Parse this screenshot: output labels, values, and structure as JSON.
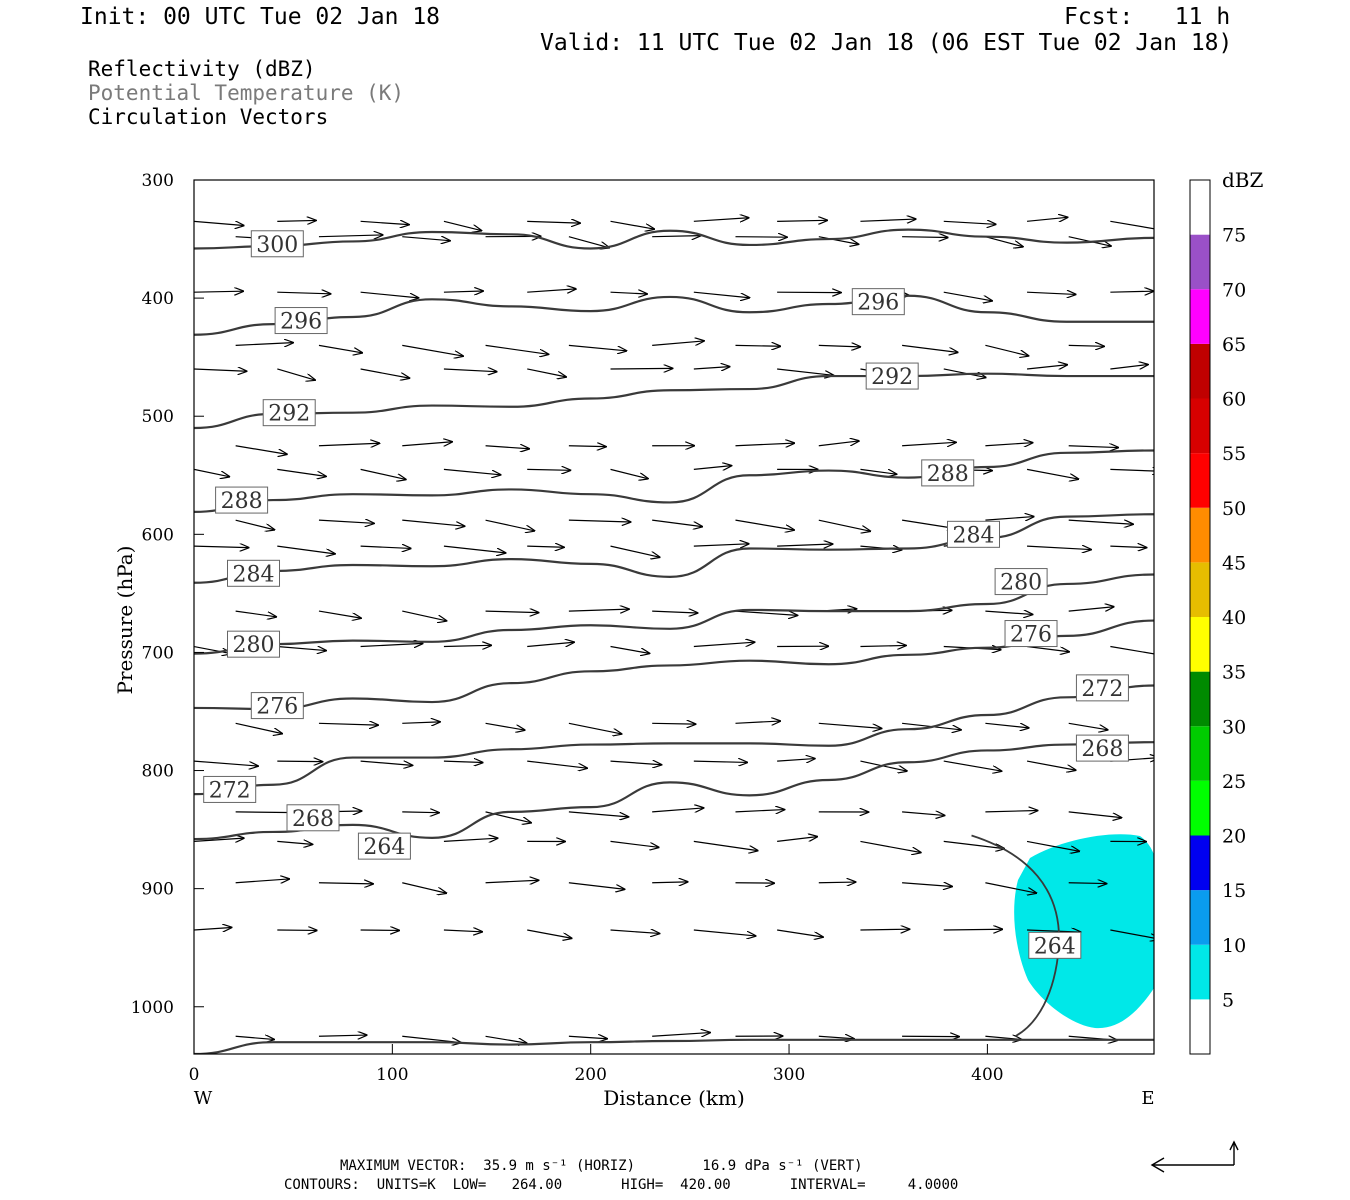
{
  "header": {
    "init": "Init: 00 UTC Tue 02 Jan 18",
    "fcst": "Fcst:   11 h",
    "valid": "Valid: 11 UTC Tue 02 Jan 18 (06 EST Tue 02 Jan 18)"
  },
  "fields": {
    "reflectivity": "Reflectivity (dBZ)",
    "theta": "Potential Temperature (K)",
    "vectors": "Circulation Vectors"
  },
  "footer": {
    "max_vector": "MAXIMUM VECTOR:  35.9 m s⁻¹ (HORIZ)        16.9 dPa s⁻¹ (VERT)",
    "contours": "CONTOURS:  UNITS=K  LOW=   264.00       HIGH=  420.00       INTERVAL=     4.0000"
  },
  "colorbar": {
    "unit_label": "dBZ",
    "levels": [
      5,
      10,
      15,
      20,
      25,
      30,
      35,
      40,
      45,
      50,
      55,
      60,
      65,
      70,
      75
    ],
    "colors": [
      "#ffffff",
      "#00e8e8",
      "#0a9cee",
      "#0000f0",
      "#00ff00",
      "#00cc00",
      "#008a00",
      "#ffff00",
      "#e6bd00",
      "#ff8c00",
      "#ff0000",
      "#d70000",
      "#c00000",
      "#ff00ff",
      "#9a50c8",
      "#ffffff"
    ]
  },
  "chart_data": {
    "type": "contour",
    "xlabel": "Distance (km)",
    "ylabel": "Pressure (hPa)",
    "xlim": [
      0,
      484
    ],
    "ylim": [
      1040,
      300
    ],
    "xticks": [
      0,
      100,
      200,
      300,
      400
    ],
    "yticks": [
      300,
      400,
      500,
      600,
      700,
      800,
      900,
      1000
    ],
    "x_end_labels": {
      "left": "W",
      "right": "E"
    },
    "contour_interval": 4,
    "contours": [
      {
        "level": 300,
        "points": [
          [
            0,
            358
          ],
          [
            40,
            356
          ],
          [
            80,
            352
          ],
          [
            120,
            344
          ],
          [
            160,
            346
          ],
          [
            200,
            358
          ],
          [
            240,
            343
          ],
          [
            280,
            355
          ],
          [
            320,
            350
          ],
          [
            360,
            342
          ],
          [
            400,
            348
          ],
          [
            440,
            353
          ],
          [
            484,
            349
          ]
        ]
      },
      {
        "level": 296,
        "points": [
          [
            0,
            431
          ],
          [
            40,
            422
          ],
          [
            80,
            416
          ],
          [
            120,
            401
          ],
          [
            160,
            407
          ],
          [
            200,
            411
          ],
          [
            240,
            399
          ],
          [
            280,
            412
          ],
          [
            320,
            405
          ],
          [
            360,
            398
          ],
          [
            400,
            412
          ],
          [
            440,
            420
          ],
          [
            484,
            420
          ]
        ]
      },
      {
        "level": 292,
        "points": [
          [
            0,
            510
          ],
          [
            40,
            498
          ],
          [
            80,
            497
          ],
          [
            120,
            491
          ],
          [
            160,
            492
          ],
          [
            200,
            485
          ],
          [
            240,
            478
          ],
          [
            280,
            477
          ],
          [
            320,
            466
          ],
          [
            360,
            466
          ],
          [
            400,
            464
          ],
          [
            440,
            466
          ],
          [
            484,
            466
          ]
        ]
      },
      {
        "level": 288,
        "points": [
          [
            0,
            581
          ],
          [
            40,
            571
          ],
          [
            80,
            566
          ],
          [
            120,
            567
          ],
          [
            160,
            562
          ],
          [
            200,
            566
          ],
          [
            240,
            573
          ],
          [
            280,
            550
          ],
          [
            320,
            546
          ],
          [
            360,
            552
          ],
          [
            400,
            543
          ],
          [
            440,
            531
          ],
          [
            484,
            529
          ]
        ]
      },
      {
        "level": 284,
        "points": [
          [
            0,
            641
          ],
          [
            40,
            631
          ],
          [
            80,
            626
          ],
          [
            120,
            627
          ],
          [
            160,
            621
          ],
          [
            200,
            625
          ],
          [
            240,
            636
          ],
          [
            280,
            612
          ],
          [
            320,
            613
          ],
          [
            360,
            612
          ],
          [
            400,
            603
          ],
          [
            440,
            585
          ],
          [
            484,
            583
          ]
        ]
      },
      {
        "level": 280,
        "points": [
          [
            0,
            701
          ],
          [
            40,
            693
          ],
          [
            80,
            690
          ],
          [
            120,
            691
          ],
          [
            160,
            681
          ],
          [
            200,
            677
          ],
          [
            240,
            680
          ],
          [
            280,
            664
          ],
          [
            320,
            665
          ],
          [
            360,
            665
          ],
          [
            400,
            659
          ],
          [
            440,
            642
          ],
          [
            484,
            634
          ]
        ]
      },
      {
        "level": 276,
        "points": [
          [
            0,
            747
          ],
          [
            40,
            748
          ],
          [
            80,
            739
          ],
          [
            120,
            742
          ],
          [
            160,
            726
          ],
          [
            200,
            716
          ],
          [
            240,
            711
          ],
          [
            280,
            707
          ],
          [
            320,
            710
          ],
          [
            360,
            702
          ],
          [
            400,
            696
          ],
          [
            440,
            686
          ],
          [
            484,
            673
          ]
        ]
      },
      {
        "level": 272,
        "points": [
          [
            0,
            820
          ],
          [
            40,
            812
          ],
          [
            80,
            789
          ],
          [
            120,
            789
          ],
          [
            160,
            782
          ],
          [
            200,
            778
          ],
          [
            240,
            777
          ],
          [
            280,
            777
          ],
          [
            320,
            779
          ],
          [
            360,
            765
          ],
          [
            400,
            753
          ],
          [
            440,
            738
          ],
          [
            484,
            728
          ]
        ]
      },
      {
        "level": 268,
        "points": [
          [
            0,
            858
          ],
          [
            40,
            852
          ],
          [
            80,
            846
          ],
          [
            120,
            857
          ],
          [
            160,
            835
          ],
          [
            200,
            831
          ],
          [
            240,
            810
          ],
          [
            280,
            821
          ],
          [
            320,
            808
          ],
          [
            360,
            793
          ],
          [
            400,
            783
          ],
          [
            440,
            778
          ],
          [
            484,
            776
          ]
        ]
      },
      {
        "level": 264,
        "points": [
          [
            0,
            1040
          ],
          [
            40,
            1030
          ],
          [
            80,
            1030
          ],
          [
            120,
            1030
          ],
          [
            160,
            1032
          ],
          [
            200,
            1030
          ],
          [
            240,
            1029
          ],
          [
            280,
            1028
          ],
          [
            320,
            1028
          ],
          [
            360,
            1028
          ],
          [
            400,
            1028
          ],
          [
            440,
            1028
          ],
          [
            484,
            1028
          ]
        ]
      }
    ],
    "contour_labels": [
      {
        "text": "300",
        "x": 42,
        "p": 354
      },
      {
        "text": "296",
        "x": 54,
        "p": 419
      },
      {
        "text": "296",
        "x": 345,
        "p": 403
      },
      {
        "text": "292",
        "x": 48,
        "p": 497
      },
      {
        "text": "292",
        "x": 352,
        "p": 466
      },
      {
        "text": "288",
        "x": 24,
        "p": 571
      },
      {
        "text": "288",
        "x": 380,
        "p": 548
      },
      {
        "text": "284",
        "x": 30,
        "p": 633
      },
      {
        "text": "284",
        "x": 393,
        "p": 600
      },
      {
        "text": "280",
        "x": 30,
        "p": 693
      },
      {
        "text": "280",
        "x": 417,
        "p": 640
      },
      {
        "text": "276",
        "x": 42,
        "p": 745
      },
      {
        "text": "276",
        "x": 422,
        "p": 684
      },
      {
        "text": "272",
        "x": 18,
        "p": 816
      },
      {
        "text": "272",
        "x": 458,
        "p": 730
      },
      {
        "text": "268",
        "x": 60,
        "p": 840
      },
      {
        "text": "268",
        "x": 458,
        "p": 781
      },
      {
        "text": "264",
        "x": 96,
        "p": 864
      },
      {
        "text": "264",
        "x": 434,
        "p": 948
      }
    ],
    "reflectivity_area": {
      "dbz_min": 5,
      "dbz_max": 10
    },
    "vectors_note": "circulation vectors, max 35.9 m/s horizontal, 16.9 dPa/s vertical"
  }
}
